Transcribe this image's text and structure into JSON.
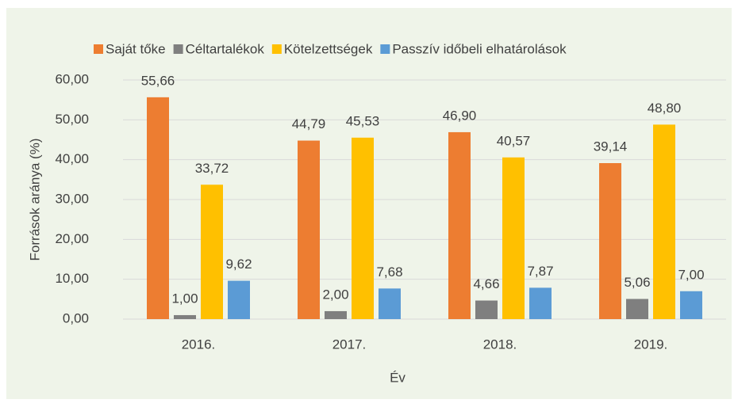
{
  "chart_data": {
    "type": "bar",
    "categories": [
      "2016.",
      "2017.",
      "2018.",
      "2019."
    ],
    "series": [
      {
        "name": "Saját tőke",
        "color": "#ed7d31",
        "values": [
          55.66,
          44.79,
          46.9,
          39.14
        ],
        "value_labels": [
          "55,66",
          "44,79",
          "46,90",
          "39,14"
        ]
      },
      {
        "name": "Céltartalékok",
        "color": "#7f7f7f",
        "values": [
          1.0,
          2.0,
          4.66,
          5.06
        ],
        "value_labels": [
          "1,00",
          "2,00",
          "4,66",
          "5,06"
        ]
      },
      {
        "name": "Kötelzettségek",
        "color": "#ffc000",
        "values": [
          33.72,
          45.53,
          40.57,
          48.8
        ],
        "value_labels": [
          "33,72",
          "45,53",
          "40,57",
          "48,80"
        ]
      },
      {
        "name": "Passzív időbeli elhatárolások",
        "color": "#5b9bd5",
        "values": [
          9.62,
          7.68,
          7.87,
          7.0
        ],
        "value_labels": [
          "9,62",
          "7,68",
          "7,87",
          "7,00"
        ]
      }
    ],
    "xlabel": "Év",
    "ylabel": "Források aránya (%)",
    "ylim": [
      0,
      60
    ],
    "yticks": [
      {
        "value": 0,
        "label": "0,00"
      },
      {
        "value": 10,
        "label": "10,00"
      },
      {
        "value": 20,
        "label": "20,00"
      },
      {
        "value": 30,
        "label": "30,00"
      },
      {
        "value": 40,
        "label": "40,00"
      },
      {
        "value": 50,
        "label": "50,00"
      },
      {
        "value": 60,
        "label": "60,00"
      }
    ],
    "grid": true,
    "legend": "top"
  }
}
